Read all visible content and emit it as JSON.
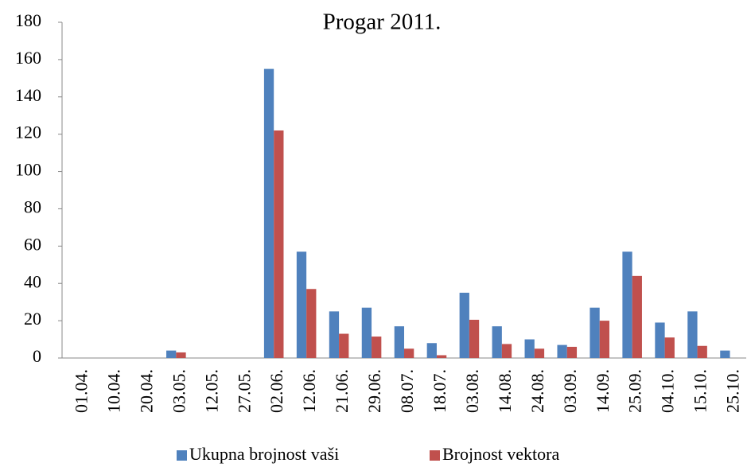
{
  "chart_data": {
    "type": "bar",
    "title": "Progar 2011.",
    "categories": [
      "01.04.",
      "10.04.",
      "20.04.",
      "03.05.",
      "12.05.",
      "27.05.",
      "02.06.",
      "12.06.",
      "21.06.",
      "29.06.",
      "08.07.",
      "18.07.",
      "03.08.",
      "14.08.",
      "24.08.",
      "03.09.",
      "14.09.",
      "25.09.",
      "04.10.",
      "15.10.",
      "25.10."
    ],
    "series": [
      {
        "name": "Ukupna brojnost vaši",
        "color": "#4f81bd",
        "values": [
          0,
          0,
          0,
          4,
          0,
          0,
          155,
          57,
          25,
          27,
          17,
          8,
          35,
          17,
          10,
          7,
          27,
          57,
          19,
          25,
          4
        ]
      },
      {
        "name": "Brojnost vektora",
        "color": "#c0504d",
        "values": [
          0,
          0,
          0,
          3,
          0,
          0,
          122,
          37,
          13,
          11.5,
          5,
          1.5,
          20.5,
          7.5,
          5,
          6,
          20,
          44,
          11,
          6.5,
          0
        ]
      }
    ],
    "ylim": [
      0,
      180
    ],
    "yticks": [
      0,
      20,
      40,
      60,
      80,
      100,
      120,
      140,
      160,
      180
    ],
    "legend": "bottom"
  }
}
